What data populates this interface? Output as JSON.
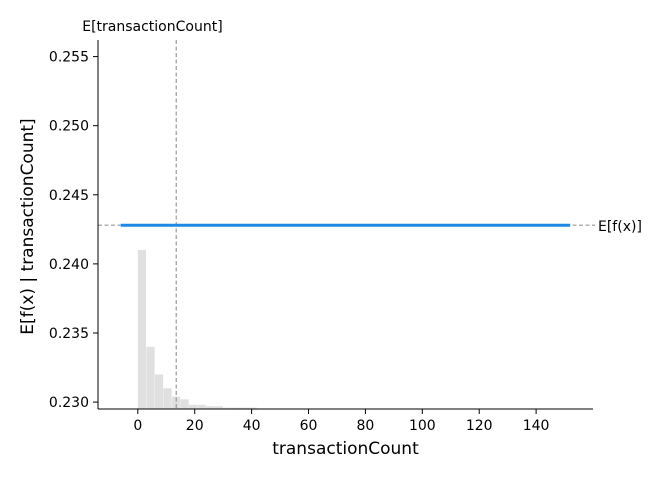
{
  "chart_data": {
    "type": "line",
    "title": "",
    "xlabel": "transactionCount",
    "ylabel": "E[f(x) | transactionCount]",
    "xlim": [
      -14,
      160
    ],
    "ylim": [
      0.2295,
      0.2562
    ],
    "x_ticks": [
      0,
      20,
      40,
      60,
      80,
      100,
      120,
      140
    ],
    "y_ticks": [
      0.23,
      0.235,
      0.24,
      0.245,
      0.25,
      0.255
    ],
    "x_tick_labels": [
      "0",
      "20",
      "40",
      "60",
      "80",
      "100",
      "120",
      "140"
    ],
    "y_tick_labels": [
      "0.230",
      "0.235",
      "0.240",
      "0.245",
      "0.250",
      "0.255"
    ],
    "grid": false,
    "series": [
      {
        "x": [
          -6,
          152
        ],
        "y": [
          0.2428,
          0.2428
        ],
        "color": "#1e88e5"
      }
    ],
    "expected_value_line": {
      "y": 0.2428,
      "label": "E[f(x)]",
      "color": "#999999"
    },
    "expected_feature_line": {
      "x": 13.5,
      "label": "E[transactionCount]",
      "color": "#999999"
    },
    "histogram": {
      "color": "#e0e0e0",
      "bin_width": 3.0,
      "bin_starts": [
        0,
        3,
        6,
        9,
        12,
        15,
        18,
        21,
        24,
        27,
        30,
        33,
        36,
        39,
        42,
        45,
        48,
        51,
        54,
        57,
        60,
        63,
        66,
        69,
        72,
        75,
        78
      ],
      "heights": [
        0.241,
        0.234,
        0.232,
        0.231,
        0.2304,
        0.2302,
        0.2298,
        0.2298,
        0.2297,
        0.2297,
        0.2296,
        0.2296,
        0.2296,
        0.2296,
        0.2295,
        0.2295,
        0.2295,
        0.2295,
        0.2295,
        0.2295,
        0.2295,
        0.2295,
        0.2295,
        0.2295,
        0.2295,
        0.2295,
        0.2295
      ]
    }
  }
}
